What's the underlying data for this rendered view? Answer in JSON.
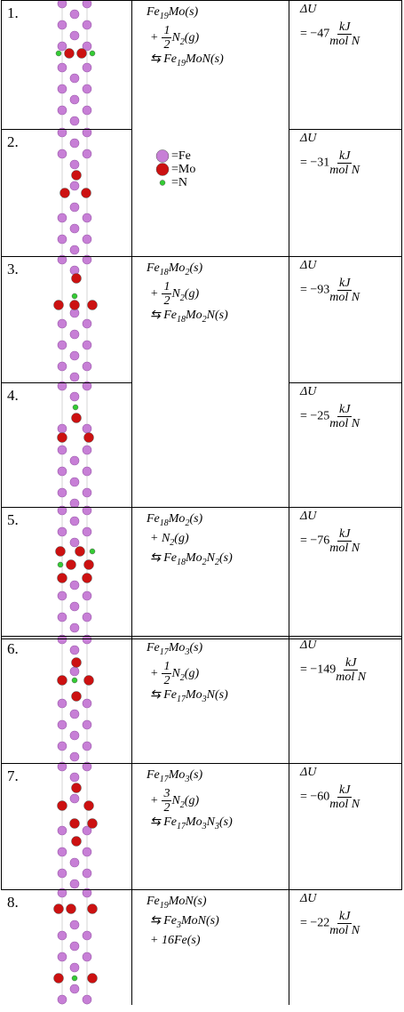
{
  "legend": [
    "=Fe",
    "=Mo",
    "=N"
  ],
  "rows": [
    {
      "number": "1.",
      "reaction": [
        "Fe19Mo(s)",
        {
          "op": "+",
          "num": "1",
          "den": "2",
          "term": "N2(g)"
        },
        "⇆ Fe19MoN(s)"
      ],
      "du_label": "ΔU",
      "du_value": "= −47",
      "du_num": "kJ",
      "du_den": "mol N"
    },
    {
      "number": "2.",
      "du_label": "ΔU",
      "du_value": "= −31",
      "du_num": "kJ",
      "du_den": "mol N"
    },
    {
      "number": "3.",
      "reaction": [
        "Fe18Mo2(s)",
        {
          "op": "+",
          "num": "1",
          "den": "2",
          "term": "N2(g)"
        },
        "⇆ Fe18Mo2N(s)"
      ],
      "du_label": "ΔU",
      "du_value": "= −93",
      "du_num": "kJ",
      "du_den": "mol N"
    },
    {
      "number": "4.",
      "du_label": "ΔU",
      "du_value": "= −25",
      "du_num": "kJ",
      "du_den": "mol N"
    },
    {
      "number": "5.",
      "reaction": [
        "Fe18Mo2(s)",
        "+ N2(g)",
        "⇆ Fe18Mo2N2(s)"
      ],
      "du_label": "ΔU",
      "du_value": "= −76",
      "du_num": "kJ",
      "du_den": "mol N"
    },
    {
      "number": "6.",
      "reaction": [
        "Fe17Mo3(s)",
        {
          "op": "+",
          "num": "1",
          "den": "2",
          "term": "N2(g)"
        },
        "⇆ Fe17Mo3N(s)"
      ],
      "du_label": "ΔU",
      "du_value": "= −149",
      "du_num": "kJ",
      "du_den": "mol N"
    },
    {
      "number": "7.",
      "reaction": [
        "Fe17Mo3(s)",
        {
          "op": "+",
          "num": "3",
          "den": "2",
          "term": "N2(g)"
        },
        "⇆ Fe17Mo3N3(s)"
      ],
      "du_label": "ΔU",
      "du_value": "= −60",
      "du_num": "kJ",
      "du_den": "mol N"
    },
    {
      "number": "8.",
      "reaction": [
        "Fe19MoN(s)",
        "⇆ Fe3MoN(s)",
        "+ 16Fe(s)"
      ],
      "du_label": "ΔU",
      "du_value": "= −22",
      "du_num": "kJ",
      "du_den": "mol N"
    }
  ]
}
